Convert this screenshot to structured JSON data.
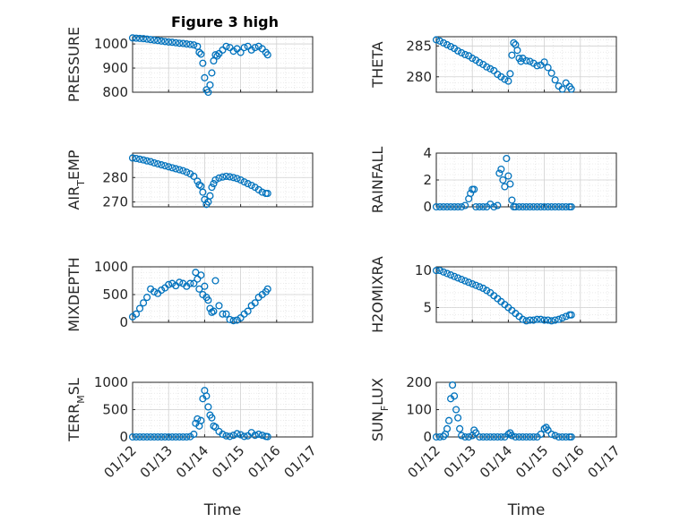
{
  "figure_title": "Figure 3 high",
  "colors": {
    "marker": "#0072BD",
    "grid": "#d0d0d0",
    "axis": "#262626"
  },
  "x_ticks": [
    "01/12",
    "01/13",
    "01/14",
    "01/15",
    "01/16",
    "01/17"
  ],
  "x_label": "Time",
  "chart_data": [
    {
      "type": "scatter",
      "ylabel_main": "PRESSURE",
      "ylabel_sub": "",
      "ylabel_tail": "",
      "ylim": [
        800,
        1030
      ],
      "yticks": [
        800,
        900,
        1000
      ],
      "grid": true,
      "x": [
        0.0,
        0.1,
        0.2,
        0.3,
        0.4,
        0.5,
        0.6,
        0.7,
        0.8,
        0.9,
        1.0,
        1.1,
        1.2,
        1.3,
        1.4,
        1.5,
        1.6,
        1.7,
        1.8,
        1.85,
        1.9,
        1.95,
        2.0,
        2.05,
        2.1,
        2.15,
        2.2,
        2.25,
        2.3,
        2.35,
        2.4,
        2.5,
        2.6,
        2.7,
        2.8,
        2.9,
        3.0,
        3.1,
        3.2,
        3.3,
        3.4,
        3.5,
        3.6,
        3.7,
        3.75
      ],
      "y": [
        1025,
        1024,
        1023,
        1022,
        1020,
        1018,
        1016,
        1014,
        1012,
        1010,
        1008,
        1007,
        1005,
        1003,
        1002,
        1000,
        998,
        996,
        990,
        965,
        958,
        920,
        860,
        810,
        800,
        830,
        880,
        930,
        955,
        950,
        960,
        975,
        990,
        985,
        970,
        980,
        965,
        985,
        990,
        975,
        985,
        990,
        980,
        965,
        955
      ]
    },
    {
      "type": "scatter",
      "ylabel_main": "THETA",
      "ylabel_sub": "",
      "ylabel_tail": "",
      "ylim": [
        277.5,
        286.5
      ],
      "yticks": [
        280,
        285
      ],
      "grid": true,
      "x": [
        0.0,
        0.1,
        0.2,
        0.3,
        0.4,
        0.5,
        0.6,
        0.7,
        0.8,
        0.9,
        1.0,
        1.1,
        1.2,
        1.3,
        1.4,
        1.5,
        1.6,
        1.7,
        1.8,
        1.9,
        2.0,
        2.05,
        2.1,
        2.15,
        2.2,
        2.25,
        2.3,
        2.35,
        2.4,
        2.5,
        2.6,
        2.7,
        2.8,
        2.9,
        3.0,
        3.1,
        3.2,
        3.3,
        3.4,
        3.5,
        3.6,
        3.7,
        3.75
      ],
      "y": [
        286.0,
        285.8,
        285.5,
        285.2,
        284.9,
        284.6,
        284.2,
        283.9,
        283.6,
        283.4,
        283.0,
        282.7,
        282.3,
        282.0,
        281.6,
        281.3,
        281.0,
        280.4,
        280.0,
        279.6,
        279.3,
        280.5,
        283.5,
        285.5,
        285.2,
        284.3,
        283.0,
        282.5,
        283.0,
        282.6,
        282.5,
        282.2,
        281.8,
        281.9,
        282.4,
        281.5,
        280.6,
        279.5,
        278.5,
        278.0,
        279.0,
        278.4,
        278.0
      ]
    },
    {
      "type": "scatter",
      "ylabel_main": "AIR",
      "ylabel_sub": "T",
      "ylabel_tail": "EMP",
      "ylim": [
        268,
        290
      ],
      "yticks": [
        270,
        280
      ],
      "grid": true,
      "x": [
        0.0,
        0.1,
        0.2,
        0.3,
        0.4,
        0.5,
        0.6,
        0.7,
        0.8,
        0.9,
        1.0,
        1.1,
        1.2,
        1.3,
        1.4,
        1.5,
        1.6,
        1.7,
        1.8,
        1.85,
        1.9,
        1.95,
        2.0,
        2.05,
        2.1,
        2.15,
        2.2,
        2.25,
        2.3,
        2.4,
        2.5,
        2.6,
        2.7,
        2.8,
        2.9,
        3.0,
        3.1,
        3.2,
        3.3,
        3.4,
        3.5,
        3.6,
        3.7,
        3.75
      ],
      "y": [
        288.0,
        287.8,
        287.5,
        287.2,
        286.8,
        286.5,
        286.0,
        285.6,
        285.2,
        284.8,
        284.4,
        284.0,
        283.6,
        283.2,
        282.8,
        282.2,
        281.5,
        280.5,
        278.5,
        277.0,
        276.5,
        274.0,
        271.0,
        269.0,
        270.0,
        272.5,
        276.0,
        277.5,
        279.0,
        279.8,
        280.2,
        280.5,
        280.3,
        280.0,
        279.6,
        279.0,
        278.2,
        277.5,
        276.8,
        276.0,
        275.0,
        274.0,
        273.5,
        273.5
      ]
    },
    {
      "type": "scatter",
      "ylabel_main": "RAINFALL",
      "ylabel_sub": "",
      "ylabel_tail": "",
      "ylim": [
        0,
        4
      ],
      "yticks": [
        0,
        2,
        4
      ],
      "grid": true,
      "x": [
        0.0,
        0.1,
        0.2,
        0.3,
        0.4,
        0.5,
        0.6,
        0.7,
        0.8,
        0.9,
        0.95,
        1.0,
        1.05,
        1.1,
        1.2,
        1.3,
        1.4,
        1.5,
        1.6,
        1.7,
        1.75,
        1.8,
        1.85,
        1.9,
        1.95,
        2.0,
        2.05,
        2.1,
        2.15,
        2.2,
        2.3,
        2.4,
        2.5,
        2.6,
        2.7,
        2.8,
        2.9,
        3.0,
        3.1,
        3.2,
        3.3,
        3.4,
        3.5,
        3.6,
        3.7,
        3.75
      ],
      "y": [
        0,
        0,
        0,
        0,
        0,
        0,
        0,
        0,
        0.1,
        0.6,
        1.0,
        1.3,
        1.3,
        0,
        0,
        0,
        0,
        0.2,
        0,
        0.1,
        2.5,
        2.8,
        2.0,
        1.5,
        3.6,
        2.3,
        1.7,
        0.5,
        0,
        0,
        0,
        0,
        0,
        0,
        0,
        0,
        0,
        0,
        0,
        0,
        0,
        0,
        0,
        0,
        0,
        0
      ]
    },
    {
      "type": "scatter",
      "ylabel_main": "MIXDEPTH",
      "ylabel_sub": "",
      "ylabel_tail": "",
      "ylim": [
        0,
        1000
      ],
      "yticks": [
        0,
        500,
        1000
      ],
      "grid": true,
      "x": [
        0.0,
        0.1,
        0.2,
        0.3,
        0.4,
        0.5,
        0.6,
        0.7,
        0.8,
        0.9,
        1.0,
        1.1,
        1.2,
        1.3,
        1.4,
        1.5,
        1.6,
        1.7,
        1.75,
        1.8,
        1.85,
        1.9,
        1.95,
        2.0,
        2.05,
        2.1,
        2.15,
        2.2,
        2.25,
        2.3,
        2.4,
        2.5,
        2.6,
        2.7,
        2.8,
        2.9,
        3.0,
        3.1,
        3.2,
        3.3,
        3.4,
        3.5,
        3.6,
        3.7,
        3.75
      ],
      "y": [
        100,
        150,
        250,
        350,
        450,
        600,
        550,
        520,
        580,
        620,
        680,
        700,
        660,
        720,
        700,
        650,
        700,
        700,
        900,
        780,
        600,
        850,
        500,
        650,
        450,
        400,
        250,
        180,
        200,
        750,
        300,
        150,
        150,
        50,
        30,
        40,
        80,
        150,
        200,
        300,
        350,
        450,
        500,
        550,
        600
      ]
    },
    {
      "type": "scatter",
      "ylabel_main": "H2OMIXRA",
      "ylabel_sub": "",
      "ylabel_tail": "",
      "ylim": [
        3,
        10.5
      ],
      "yticks": [
        5,
        10
      ],
      "grid": true,
      "x": [
        0.0,
        0.1,
        0.2,
        0.3,
        0.4,
        0.5,
        0.6,
        0.7,
        0.8,
        0.9,
        1.0,
        1.1,
        1.2,
        1.3,
        1.4,
        1.5,
        1.6,
        1.7,
        1.8,
        1.9,
        2.0,
        2.1,
        2.2,
        2.3,
        2.4,
        2.5,
        2.6,
        2.7,
        2.8,
        2.9,
        3.0,
        3.1,
        3.2,
        3.3,
        3.4,
        3.5,
        3.6,
        3.7,
        3.75
      ],
      "y": [
        10.0,
        10.0,
        9.8,
        9.6,
        9.4,
        9.2,
        9.0,
        8.8,
        8.6,
        8.4,
        8.2,
        8.0,
        7.8,
        7.6,
        7.3,
        7.0,
        6.6,
        6.2,
        5.8,
        5.4,
        5.0,
        4.6,
        4.2,
        3.8,
        3.4,
        3.2,
        3.3,
        3.3,
        3.4,
        3.4,
        3.3,
        3.3,
        3.2,
        3.3,
        3.4,
        3.6,
        3.8,
        4.0,
        4.0
      ]
    },
    {
      "type": "scatter",
      "ylabel_main": "TERR",
      "ylabel_sub": "M",
      "ylabel_tail": "SL",
      "ylim": [
        0,
        1000
      ],
      "yticks": [
        0,
        500,
        1000
      ],
      "grid": true,
      "x": [
        0.0,
        0.1,
        0.2,
        0.3,
        0.4,
        0.5,
        0.6,
        0.7,
        0.8,
        0.9,
        1.0,
        1.1,
        1.2,
        1.3,
        1.4,
        1.5,
        1.6,
        1.7,
        1.75,
        1.8,
        1.85,
        1.9,
        1.95,
        2.0,
        2.05,
        2.1,
        2.15,
        2.2,
        2.25,
        2.3,
        2.4,
        2.5,
        2.6,
        2.7,
        2.8,
        2.9,
        3.0,
        3.1,
        3.2,
        3.3,
        3.4,
        3.5,
        3.6,
        3.7,
        3.75
      ],
      "y": [
        0,
        0,
        0,
        0,
        0,
        0,
        0,
        0,
        0,
        0,
        0,
        0,
        0,
        0,
        0,
        0,
        5,
        50,
        250,
        330,
        200,
        300,
        700,
        850,
        750,
        550,
        400,
        350,
        200,
        180,
        100,
        50,
        20,
        10,
        30,
        60,
        40,
        10,
        20,
        80,
        30,
        50,
        30,
        10,
        5
      ]
    },
    {
      "type": "scatter",
      "ylabel_main": "SUN",
      "ylabel_sub": "F",
      "ylabel_tail": "LUX",
      "ylim": [
        0,
        200
      ],
      "yticks": [
        0,
        100,
        200
      ],
      "grid": true,
      "x": [
        0.0,
        0.1,
        0.2,
        0.25,
        0.3,
        0.35,
        0.4,
        0.45,
        0.5,
        0.55,
        0.6,
        0.65,
        0.7,
        0.8,
        0.9,
        1.0,
        1.05,
        1.1,
        1.2,
        1.3,
        1.4,
        1.5,
        1.6,
        1.7,
        1.8,
        1.9,
        2.0,
        2.05,
        2.1,
        2.2,
        2.3,
        2.4,
        2.5,
        2.6,
        2.7,
        2.8,
        2.9,
        3.0,
        3.05,
        3.1,
        3.2,
        3.3,
        3.4,
        3.5,
        3.6,
        3.7,
        3.75
      ],
      "y": [
        0,
        0,
        2,
        10,
        30,
        60,
        140,
        190,
        150,
        100,
        70,
        30,
        5,
        0,
        0,
        5,
        25,
        15,
        0,
        0,
        0,
        0,
        0,
        0,
        0,
        0,
        10,
        15,
        5,
        0,
        0,
        0,
        0,
        0,
        0,
        0,
        10,
        30,
        35,
        25,
        10,
        5,
        0,
        0,
        0,
        0,
        0
      ]
    }
  ]
}
